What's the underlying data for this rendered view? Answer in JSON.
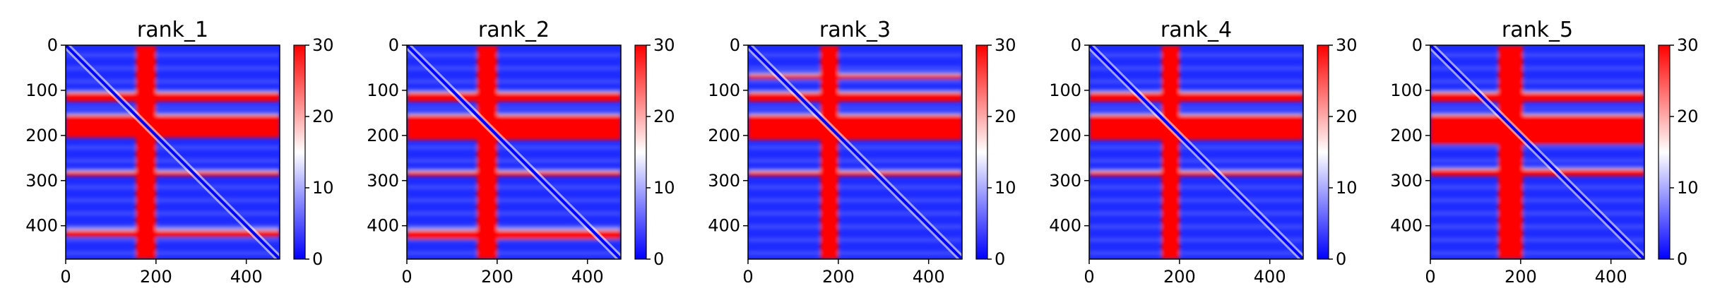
{
  "chart_data": [
    {
      "type": "heatmap",
      "title": "rank_1",
      "x_range": [
        0,
        474
      ],
      "y_range": [
        0,
        474
      ],
      "x_ticks": [
        "0",
        "200",
        "400"
      ],
      "y_ticks": [
        "0",
        "100",
        "200",
        "300",
        "400"
      ],
      "colorbar": {
        "range": [
          0,
          30
        ],
        "ticks": [
          "0",
          "10",
          "20",
          "30"
        ],
        "colormap": [
          "#0000ff",
          "#ffffff",
          "#ff0000"
        ]
      },
      "high_distance_bands": {
        "rows": [
          [
            105,
            125
          ],
          [
            155,
            205
          ],
          [
            280,
            290
          ],
          [
            410,
            425
          ]
        ],
        "columns": [
          [
            155,
            200
          ]
        ]
      },
      "diagonal_value": 0
    },
    {
      "type": "heatmap",
      "title": "rank_2",
      "x_range": [
        0,
        474
      ],
      "y_range": [
        0,
        474
      ],
      "x_ticks": [
        "0",
        "200",
        "400"
      ],
      "y_ticks": [
        "0",
        "100",
        "200",
        "300",
        "400"
      ],
      "colorbar": {
        "range": [
          0,
          30
        ],
        "ticks": [
          "0",
          "10",
          "20",
          "30"
        ],
        "colormap": [
          "#0000ff",
          "#ffffff",
          "#ff0000"
        ]
      },
      "high_distance_bands": {
        "rows": [
          [
            105,
            125
          ],
          [
            155,
            210
          ],
          [
            280,
            290
          ],
          [
            410,
            430
          ]
        ],
        "columns": [
          [
            155,
            200
          ]
        ]
      },
      "diagonal_value": 0
    },
    {
      "type": "heatmap",
      "title": "rank_3",
      "x_range": [
        0,
        474
      ],
      "y_range": [
        0,
        474
      ],
      "x_ticks": [
        "0",
        "200",
        "400"
      ],
      "y_ticks": [
        "0",
        "100",
        "200",
        "300",
        "400"
      ],
      "colorbar": {
        "range": [
          0,
          30
        ],
        "ticks": [
          "0",
          "10",
          "20",
          "30"
        ],
        "colormap": [
          "#0000ff",
          "#ffffff",
          "#ff0000"
        ]
      },
      "high_distance_bands": {
        "rows": [
          [
            65,
            75
          ],
          [
            105,
            125
          ],
          [
            155,
            210
          ],
          [
            280,
            290
          ]
        ],
        "columns": [
          [
            160,
            200
          ]
        ]
      },
      "diagonal_value": 0
    },
    {
      "type": "heatmap",
      "title": "rank_4",
      "x_range": [
        0,
        474
      ],
      "y_range": [
        0,
        474
      ],
      "x_ticks": [
        "0",
        "200",
        "400"
      ],
      "y_ticks": [
        "0",
        "100",
        "200",
        "300",
        "400"
      ],
      "colorbar": {
        "range": [
          0,
          30
        ],
        "ticks": [
          "0",
          "10",
          "20",
          "30"
        ],
        "colormap": [
          "#0000ff",
          "#ffffff",
          "#ff0000"
        ]
      },
      "high_distance_bands": {
        "rows": [
          [
            105,
            125
          ],
          [
            155,
            210
          ],
          [
            280,
            290
          ]
        ],
        "columns": [
          [
            160,
            200
          ]
        ]
      },
      "diagonal_value": 0
    },
    {
      "type": "heatmap",
      "title": "rank_5",
      "x_range": [
        0,
        474
      ],
      "y_range": [
        0,
        474
      ],
      "x_ticks": [
        "0",
        "200",
        "400"
      ],
      "y_ticks": [
        "0",
        "100",
        "200",
        "300",
        "400"
      ],
      "colorbar": {
        "range": [
          0,
          30
        ],
        "ticks": [
          "0",
          "10",
          "20",
          "30"
        ],
        "colormap": [
          "#0000ff",
          "#ffffff",
          "#ff0000"
        ]
      },
      "high_distance_bands": {
        "rows": [
          [
            105,
            125
          ],
          [
            155,
            220
          ],
          [
            275,
            290
          ]
        ],
        "columns": [
          [
            150,
            205
          ]
        ]
      },
      "diagonal_value": 0
    }
  ]
}
